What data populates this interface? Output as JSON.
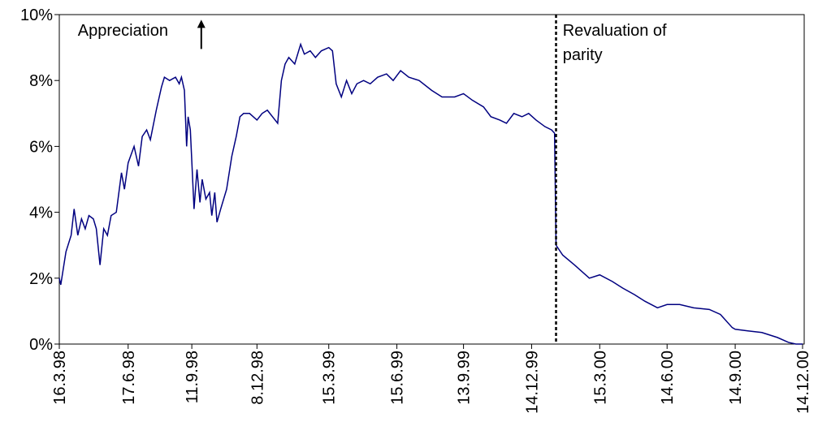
{
  "chart_data": {
    "type": "line",
    "color": "#000080",
    "annotations": [
      {
        "text": "Appreciation",
        "x": "1998-04-10",
        "y": 9.4
      },
      {
        "text": "Revaluation of parity",
        "x": "2000-01-25",
        "y": 9.4
      }
    ],
    "vline": "2000-01-16",
    "x": [
      "1998-03-16",
      "1998-03-18",
      "1998-03-25",
      "1998-04-01",
      "1998-04-05",
      "1998-04-10",
      "1998-04-15",
      "1998-04-20",
      "1998-04-25",
      "1998-05-01",
      "1998-05-05",
      "1998-05-10",
      "1998-05-15",
      "1998-05-20",
      "1998-05-25",
      "1998-06-01",
      "1998-06-08",
      "1998-06-12",
      "1998-06-17",
      "1998-06-25",
      "1998-07-01",
      "1998-07-06",
      "1998-07-12",
      "1998-07-17",
      "1998-07-25",
      "1998-08-01",
      "1998-08-05",
      "1998-08-12",
      "1998-08-20",
      "1998-08-25",
      "1998-08-28",
      "1998-09-01",
      "1998-09-04",
      "1998-09-06",
      "1998-09-09",
      "1998-09-14",
      "1998-09-18",
      "1998-09-22",
      "1998-09-25",
      "1998-09-30",
      "1998-10-05",
      "1998-10-08",
      "1998-10-12",
      "1998-10-15",
      "1998-10-20",
      "1998-10-28",
      "1998-11-04",
      "1998-11-10",
      "1998-11-15",
      "1998-11-20",
      "1998-11-28",
      "1998-12-08",
      "1998-12-15",
      "1998-12-22",
      "1999-01-05",
      "1999-01-10",
      "1999-01-15",
      "1999-01-20",
      "1999-01-28",
      "1999-02-05",
      "1999-02-10",
      "1999-02-18",
      "1999-02-25",
      "1999-03-05",
      "1999-03-15",
      "1999-03-20",
      "1999-03-25",
      "1999-04-01",
      "1999-04-08",
      "1999-04-15",
      "1999-04-22",
      "1999-05-01",
      "1999-05-10",
      "1999-05-20",
      "1999-06-01",
      "1999-06-10",
      "1999-06-20",
      "1999-07-01",
      "1999-07-15",
      "1999-08-01",
      "1999-08-15",
      "1999-09-01",
      "1999-09-13",
      "1999-09-25",
      "1999-10-10",
      "1999-10-20",
      "1999-11-01",
      "1999-11-10",
      "1999-11-20",
      "1999-12-01",
      "1999-12-10",
      "1999-12-20",
      "2000-01-01",
      "2000-01-10",
      "2000-01-14",
      "2000-01-16",
      "2000-01-25",
      "2000-02-10",
      "2000-03-01",
      "2000-03-15",
      "2000-04-01",
      "2000-04-15",
      "2000-05-01",
      "2000-05-15",
      "2000-06-01",
      "2000-06-14",
      "2000-07-01",
      "2000-07-20",
      "2000-08-10",
      "2000-08-25",
      "2000-09-10",
      "2000-09-14",
      "2000-10-01",
      "2000-10-20",
      "2000-11-10",
      "2000-11-25",
      "2000-12-05",
      "2000-12-14"
    ],
    "values": [
      2.0,
      1.8,
      2.8,
      3.3,
      4.1,
      3.3,
      3.8,
      3.5,
      3.9,
      3.8,
      3.5,
      2.4,
      3.5,
      3.3,
      3.9,
      4.0,
      5.2,
      4.7,
      5.5,
      6.0,
      5.4,
      6.3,
      6.5,
      6.2,
      7.1,
      7.8,
      8.1,
      8.0,
      8.1,
      7.9,
      8.1,
      7.7,
      6.0,
      6.9,
      6.5,
      4.1,
      5.3,
      4.3,
      5.0,
      4.4,
      4.6,
      3.9,
      4.6,
      3.7,
      4.1,
      4.7,
      5.7,
      6.3,
      6.9,
      7.0,
      7.0,
      6.8,
      7.0,
      7.1,
      6.7,
      8.0,
      8.5,
      8.7,
      8.5,
      9.1,
      8.8,
      8.9,
      8.7,
      8.9,
      9.0,
      8.9,
      7.9,
      7.5,
      8.0,
      7.6,
      7.9,
      8.0,
      7.9,
      8.1,
      8.2,
      8.0,
      8.3,
      8.1,
      8.0,
      7.7,
      7.5,
      7.5,
      7.6,
      7.4,
      7.2,
      6.9,
      6.8,
      6.7,
      7.0,
      6.9,
      7.0,
      6.8,
      6.6,
      6.5,
      6.4,
      3.0,
      2.7,
      2.4,
      2.0,
      2.1,
      1.9,
      1.7,
      1.5,
      1.3,
      1.1,
      1.2,
      1.2,
      1.1,
      1.05,
      0.9,
      0.5,
      0.45,
      0.4,
      0.35,
      0.2,
      0.05,
      0.0,
      0.0
    ],
    "xlim": [
      "1998-03-16",
      "2000-12-14"
    ],
    "xticks": [
      {
        "value": "1998-03-16",
        "label": "16.3.98"
      },
      {
        "value": "1998-06-17",
        "label": "17.6.98"
      },
      {
        "value": "1998-09-11",
        "label": "11.9.98"
      },
      {
        "value": "1998-12-08",
        "label": "8.12.98"
      },
      {
        "value": "1999-03-15",
        "label": "15.3.99"
      },
      {
        "value": "1999-06-15",
        "label": "15.6.99"
      },
      {
        "value": "1999-09-13",
        "label": "13.9.99"
      },
      {
        "value": "1999-12-14",
        "label": "14.12.99"
      },
      {
        "value": "2000-03-15",
        "label": "15.3.00"
      },
      {
        "value": "2000-06-14",
        "label": "14.6.00"
      },
      {
        "value": "2000-09-14",
        "label": "14.9.00"
      },
      {
        "value": "2000-12-14",
        "label": "14.12.00"
      }
    ],
    "ylim": [
      0,
      10
    ],
    "yticks": [
      {
        "value": 0,
        "label": "0%"
      },
      {
        "value": 2,
        "label": "2%"
      },
      {
        "value": 4,
        "label": "4%"
      },
      {
        "value": 6,
        "label": "6%"
      },
      {
        "value": 8,
        "label": "8%"
      },
      {
        "value": 10,
        "label": "10%"
      }
    ]
  }
}
